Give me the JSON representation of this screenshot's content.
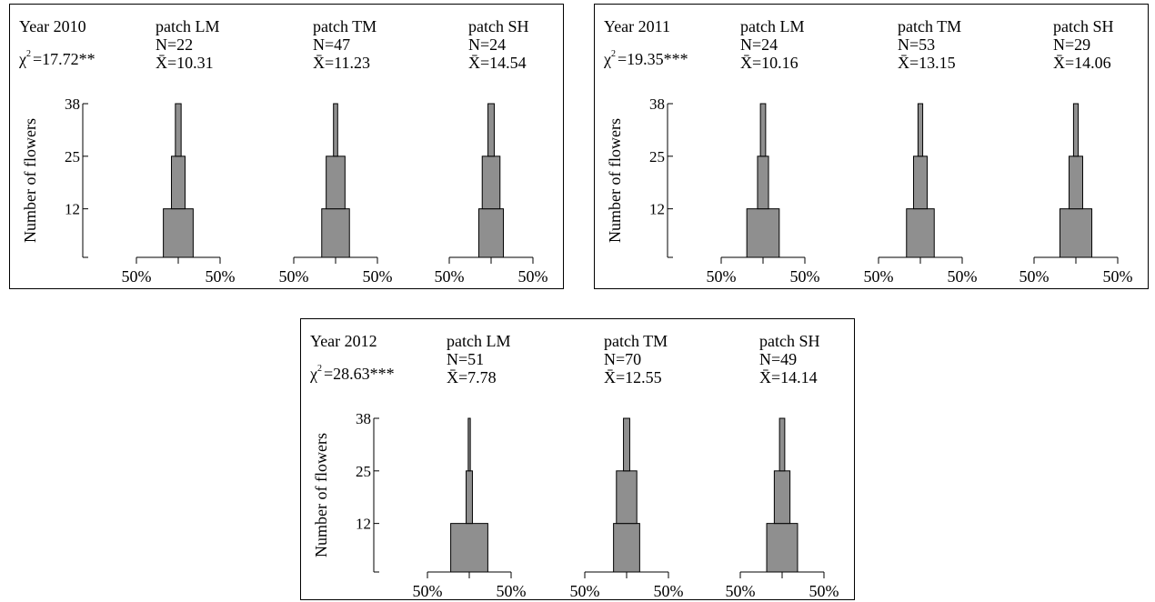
{
  "chart_data": [
    {
      "type": "bar",
      "title": "Year 2010",
      "statistic": {
        "symbol": "χ",
        "superscript": "2",
        "text": "=17.72**"
      },
      "ylabel": "Number of flowers",
      "y_ticks": [
        "38",
        "25",
        "12"
      ],
      "x_tick_label": "50%",
      "ylim": [
        0,
        38
      ],
      "bands": [
        [
          0,
          12
        ],
        [
          12,
          25
        ],
        [
          25,
          38
        ]
      ],
      "patches": [
        {
          "name": "patch LM",
          "n": "N=22",
          "mean": "X̄=10.31",
          "values": [
            57,
            26,
            11
          ]
        },
        {
          "name": "patch TM",
          "n": "N=47",
          "mean": "X̄=11.23",
          "values": [
            53,
            36,
            8
          ]
        },
        {
          "name": "patch SH",
          "n": "N=24",
          "mean": "X̄=14.54",
          "values": [
            47,
            34,
            12
          ]
        }
      ]
    },
    {
      "type": "bar",
      "title": "Year 2011",
      "statistic": {
        "symbol": "χ",
        "superscript": "2",
        "text": "=19.35***"
      },
      "ylabel": "Number of flowers",
      "y_ticks": [
        "38",
        "25",
        "12"
      ],
      "x_tick_label": "50%",
      "ylim": [
        0,
        38
      ],
      "bands": [
        [
          0,
          12
        ],
        [
          12,
          25
        ],
        [
          25,
          38
        ]
      ],
      "patches": [
        {
          "name": "patch LM",
          "n": "N=24",
          "mean": "X̄=10.16",
          "values": [
            62,
            21,
            10
          ]
        },
        {
          "name": "patch TM",
          "n": "N=53",
          "mean": "X̄=13.15",
          "values": [
            53,
            26,
            9
          ]
        },
        {
          "name": "patch SH",
          "n": "N=29",
          "mean": "X̄=14.06",
          "values": [
            61,
            26,
            9
          ]
        }
      ]
    },
    {
      "type": "bar",
      "title": "Year 2012",
      "statistic": {
        "symbol": "χ",
        "superscript": "2",
        "text": "=28.63***"
      },
      "ylabel": "Number of flowers",
      "y_ticks": [
        "38",
        "25",
        "12"
      ],
      "x_tick_label": "50%",
      "ylim": [
        0,
        38
      ],
      "bands": [
        [
          0,
          12
        ],
        [
          12,
          25
        ],
        [
          25,
          38
        ]
      ],
      "patches": [
        {
          "name": "patch LM",
          "n": "N=51",
          "mean": "X̄=7.78",
          "values": [
            71,
            12,
            4
          ]
        },
        {
          "name": "patch TM",
          "n": "N=70",
          "mean": "X̄=12.55",
          "values": [
            50,
            39,
            12
          ]
        },
        {
          "name": "patch SH",
          "n": "N=49",
          "mean": "X̄=14.14",
          "values": [
            59,
            30,
            10
          ]
        }
      ]
    }
  ],
  "colors": {
    "bar_fill": "#8f8f8f",
    "line": "#000000",
    "background": "#ffffff"
  }
}
